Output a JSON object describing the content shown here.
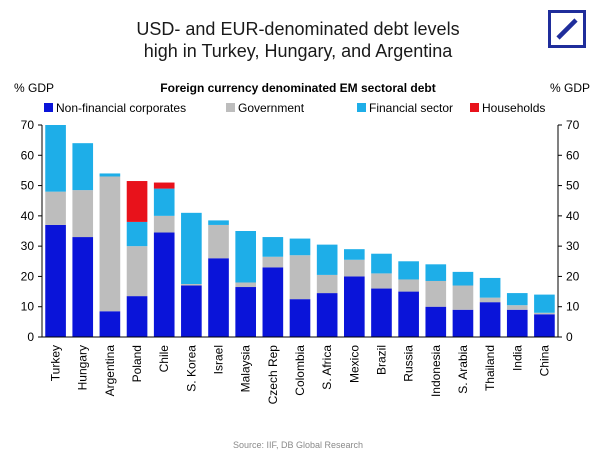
{
  "header": {
    "title_line1": "USD- and EUR-denominated debt levels",
    "title_line2": "high in Turkey, Hungary, and Argentina"
  },
  "logo": {
    "icon": "deutsche-bank-logo-icon",
    "color": "#1f2d9b"
  },
  "footer": {
    "source": "Source: IIF, DB Global Research"
  },
  "chart_data": {
    "type": "bar",
    "stacked": true,
    "title": "Foreign currency denominated EM sectoral debt",
    "ylabel_left": "% GDP",
    "ylabel_right": "% GDP",
    "ylim": [
      0,
      70
    ],
    "yticks": [
      0,
      10,
      20,
      30,
      40,
      50,
      60,
      70
    ],
    "grid": false,
    "legend_position": "top",
    "categories": [
      "Turkey",
      "Hungary",
      "Argentina",
      "Poland",
      "Chile",
      "S. Korea",
      "Israel",
      "Malaysia",
      "Czech Rep",
      "Colombia",
      "S. Africa",
      "Mexico",
      "Brazil",
      "Russia",
      "Indonesia",
      "S. Arabia",
      "Thailand",
      "India",
      "China"
    ],
    "series": [
      {
        "name": "Non-financial corporates",
        "color": "#0a14d9",
        "values": [
          37,
          33,
          8.5,
          13.5,
          34.5,
          17,
          26,
          16.5,
          23,
          12.5,
          14.5,
          20,
          16,
          15,
          10,
          9,
          11.5,
          9,
          7.5
        ]
      },
      {
        "name": "Government",
        "color": "#bdbdbd",
        "values": [
          11,
          15.5,
          44.5,
          16.5,
          5.5,
          0.5,
          11,
          1.5,
          3.5,
          14.5,
          6,
          5.5,
          5,
          4,
          8.5,
          8,
          1.5,
          1.5,
          0.5
        ]
      },
      {
        "name": "Financial sector",
        "color": "#1eaee8",
        "values": [
          22,
          15.5,
          1,
          8,
          9,
          23.5,
          1.5,
          17,
          6.5,
          5.5,
          10,
          3.5,
          6.5,
          6,
          5.5,
          4.5,
          6.5,
          4,
          6
        ]
      },
      {
        "name": "Households",
        "color": "#e8121b",
        "values": [
          0,
          0,
          0,
          13.5,
          2,
          0,
          0,
          0,
          0,
          0,
          0,
          0,
          0,
          0,
          0,
          0,
          0,
          0,
          0
        ]
      }
    ]
  }
}
